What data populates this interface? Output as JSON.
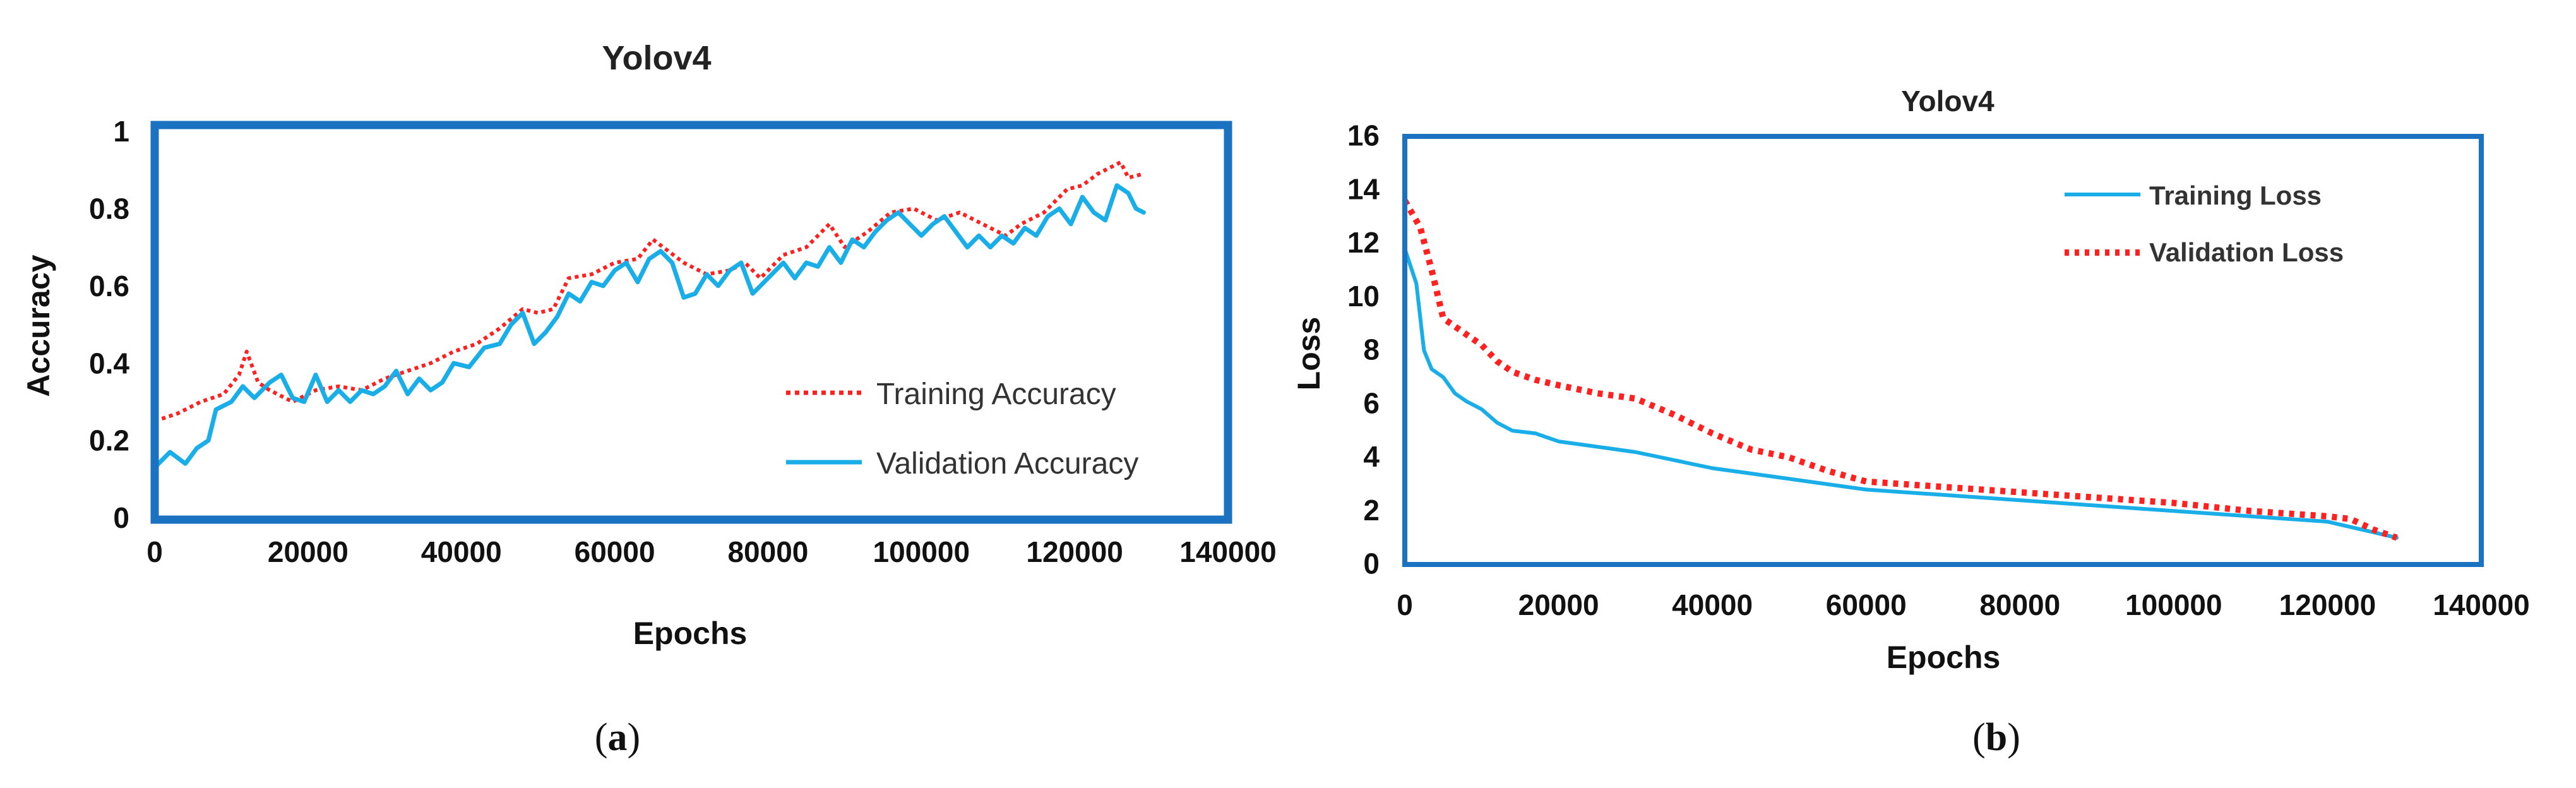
{
  "chart_data": [
    {
      "type": "line",
      "panel": "(a)",
      "panel_letter": "a",
      "title": "Yolov4",
      "xlabel": "Epochs",
      "ylabel": "Accuracy",
      "xlim": [
        0,
        140000
      ],
      "ylim": [
        0,
        1
      ],
      "xticks": [
        "0",
        "20000",
        "40000",
        "60000",
        "80000",
        "100000",
        "120000",
        "140000"
      ],
      "yticks": [
        "0",
        "0.2",
        "0.4",
        "0.6",
        "0.8",
        "1"
      ],
      "xtick_values": [
        0,
        20000,
        40000,
        60000,
        80000,
        100000,
        120000,
        140000
      ],
      "ytick_values": [
        0,
        0.2,
        0.4,
        0.6,
        0.8,
        1
      ],
      "legend_position": "bottom-right",
      "series": [
        {
          "name": "Training Accuracy",
          "color": "#ff2020",
          "style": "dotted",
          "x": [
            0,
            3000,
            6000,
            9000,
            11000,
            12000,
            13500,
            15000,
            18000,
            21000,
            24000,
            27000,
            30000,
            33000,
            36000,
            39000,
            42000,
            45000,
            48000,
            50000,
            52000,
            54000,
            57000,
            60000,
            63000,
            65000,
            67000,
            69000,
            72000,
            75000,
            77000,
            79000,
            82000,
            85000,
            88000,
            90000,
            93000,
            96000,
            99000,
            102000,
            105000,
            108000,
            111000,
            113000,
            116000,
            119000,
            121000,
            123000,
            126000,
            127000,
            129000
          ],
          "y": [
            0.25,
            0.27,
            0.3,
            0.32,
            0.37,
            0.43,
            0.35,
            0.33,
            0.3,
            0.33,
            0.34,
            0.33,
            0.36,
            0.38,
            0.4,
            0.43,
            0.45,
            0.49,
            0.54,
            0.53,
            0.54,
            0.62,
            0.63,
            0.66,
            0.67,
            0.72,
            0.69,
            0.66,
            0.63,
            0.64,
            0.66,
            0.62,
            0.68,
            0.7,
            0.76,
            0.7,
            0.74,
            0.79,
            0.8,
            0.77,
            0.79,
            0.76,
            0.73,
            0.76,
            0.79,
            0.85,
            0.86,
            0.89,
            0.92,
            0.88,
            0.89
          ]
        },
        {
          "name": "Validation Accuracy",
          "color": "#1aaee8",
          "style": "solid",
          "x": [
            0,
            2000,
            4000,
            5500,
            7000,
            8000,
            10000,
            11500,
            13000,
            15000,
            16500,
            18000,
            19500,
            21000,
            22500,
            24000,
            25500,
            27000,
            28500,
            30000,
            31500,
            33000,
            34500,
            36000,
            37500,
            39000,
            41000,
            43000,
            45000,
            46500,
            48000,
            49500,
            51000,
            52500,
            54000,
            55500,
            57000,
            58500,
            60000,
            61500,
            63000,
            64500,
            66000,
            67500,
            69000,
            70500,
            72000,
            73500,
            75000,
            76500,
            78000,
            79000,
            80500,
            82000,
            83500,
            85000,
            86500,
            88000,
            89500,
            91000,
            92500,
            94000,
            95500,
            97000,
            98500,
            100000,
            101500,
            103000,
            104500,
            106000,
            107500,
            109000,
            110500,
            112000,
            113500,
            115000,
            116500,
            118000,
            119500,
            121000,
            122500,
            124000,
            125500,
            127000,
            128000,
            129000
          ],
          "y": [
            0.13,
            0.17,
            0.14,
            0.18,
            0.2,
            0.28,
            0.3,
            0.34,
            0.31,
            0.35,
            0.37,
            0.31,
            0.3,
            0.37,
            0.3,
            0.33,
            0.3,
            0.33,
            0.32,
            0.34,
            0.38,
            0.32,
            0.36,
            0.33,
            0.35,
            0.4,
            0.39,
            0.44,
            0.45,
            0.5,
            0.53,
            0.45,
            0.48,
            0.52,
            0.58,
            0.56,
            0.61,
            0.6,
            0.64,
            0.66,
            0.61,
            0.67,
            0.69,
            0.66,
            0.57,
            0.58,
            0.63,
            0.6,
            0.64,
            0.66,
            0.58,
            0.6,
            0.63,
            0.66,
            0.62,
            0.66,
            0.65,
            0.7,
            0.66,
            0.72,
            0.7,
            0.74,
            0.77,
            0.79,
            0.76,
            0.73,
            0.76,
            0.78,
            0.74,
            0.7,
            0.73,
            0.7,
            0.73,
            0.71,
            0.75,
            0.73,
            0.78,
            0.8,
            0.76,
            0.83,
            0.79,
            0.77,
            0.86,
            0.84,
            0.8,
            0.79
          ]
        }
      ]
    },
    {
      "type": "line",
      "panel": "(b)",
      "panel_letter": "b",
      "title": "Yolov4",
      "xlabel": "Epochs",
      "ylabel": "Loss",
      "xlim": [
        0,
        140000
      ],
      "ylim": [
        0,
        16
      ],
      "xticks": [
        "0",
        "20000",
        "40000",
        "60000",
        "80000",
        "100000",
        "120000",
        "140000"
      ],
      "yticks": [
        "0",
        "2",
        "4",
        "6",
        "8",
        "10",
        "12",
        "14",
        "16"
      ],
      "xtick_values": [
        0,
        20000,
        40000,
        60000,
        80000,
        100000,
        120000,
        140000
      ],
      "ytick_values": [
        0,
        2,
        4,
        6,
        8,
        10,
        12,
        14,
        16
      ],
      "legend_position": "top-right",
      "series": [
        {
          "name": "Training Loss",
          "color": "#1aaee8",
          "style": "solid",
          "x": [
            0,
            1500,
            2500,
            3500,
            5000,
            6500,
            8000,
            10000,
            12000,
            14000,
            17000,
            20000,
            25000,
            30000,
            35000,
            40000,
            45000,
            50000,
            60000,
            70000,
            80000,
            90000,
            100000,
            110000,
            120000,
            123000,
            126000,
            129000
          ],
          "y": [
            11.8,
            10.5,
            8.0,
            7.3,
            7.0,
            6.4,
            6.1,
            5.8,
            5.3,
            5.0,
            4.9,
            4.6,
            4.4,
            4.2,
            3.9,
            3.6,
            3.4,
            3.2,
            2.8,
            2.6,
            2.4,
            2.2,
            2.0,
            1.8,
            1.6,
            1.4,
            1.2,
            1.0
          ]
        },
        {
          "name": "Validation Loss",
          "color": "#ff2020",
          "style": "dotted",
          "x": [
            0,
            2000,
            3500,
            5000,
            6500,
            8000,
            10000,
            12000,
            14000,
            17000,
            20000,
            25000,
            30000,
            35000,
            40000,
            45000,
            50000,
            55000,
            60000,
            70000,
            80000,
            90000,
            100000,
            110000,
            120000,
            123000,
            126000,
            129000
          ],
          "y": [
            13.6,
            12.6,
            11.0,
            9.2,
            8.9,
            8.6,
            8.2,
            7.6,
            7.2,
            6.9,
            6.7,
            6.4,
            6.2,
            5.6,
            4.9,
            4.3,
            4.0,
            3.5,
            3.1,
            2.9,
            2.7,
            2.5,
            2.3,
            2.0,
            1.8,
            1.7,
            1.3,
            1.0
          ]
        }
      ]
    }
  ]
}
